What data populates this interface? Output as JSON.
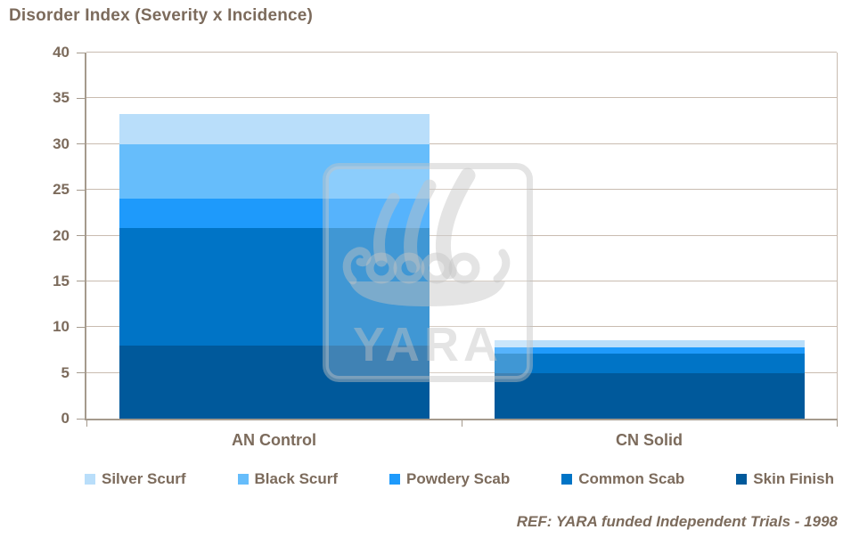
{
  "chart_data": {
    "type": "bar",
    "stacked": true,
    "title": "Disorder Index (Severity x Incidence)",
    "categories": [
      "AN Control",
      "CN Solid"
    ],
    "series": [
      {
        "name": "Silver Scurf",
        "color": "#B9DEFA",
        "values": [
          3.3,
          0.8
        ]
      },
      {
        "name": "Black Scurf",
        "color": "#66BDFB",
        "values": [
          6.0,
          0.0
        ]
      },
      {
        "name": "Powdery Scab",
        "color": "#1E9AFB",
        "values": [
          3.2,
          0.7
        ]
      },
      {
        "name": "Common Scab",
        "color": "#0074C6",
        "values": [
          12.8,
          2.1
        ]
      },
      {
        "name": "Skin Finish",
        "color": "#00599B",
        "values": [
          8.0,
          5.0
        ]
      }
    ],
    "category_totals": [
      33.3,
      8.6
    ],
    "ylim": [
      0,
      40
    ],
    "ytick_step": 5,
    "grid": true,
    "legend_position": "bottom",
    "stack_note": "series listed top-of-stack first; legend reads left to right in same order"
  },
  "watermark": {
    "text": "YARA"
  },
  "footer": {
    "ref_text": "REF: YARA funded Independent Trials - 1998"
  },
  "colors": {
    "label_text": "#7C6B5C",
    "gridline": "#C9BCB0",
    "axis": "#A59A8D"
  }
}
